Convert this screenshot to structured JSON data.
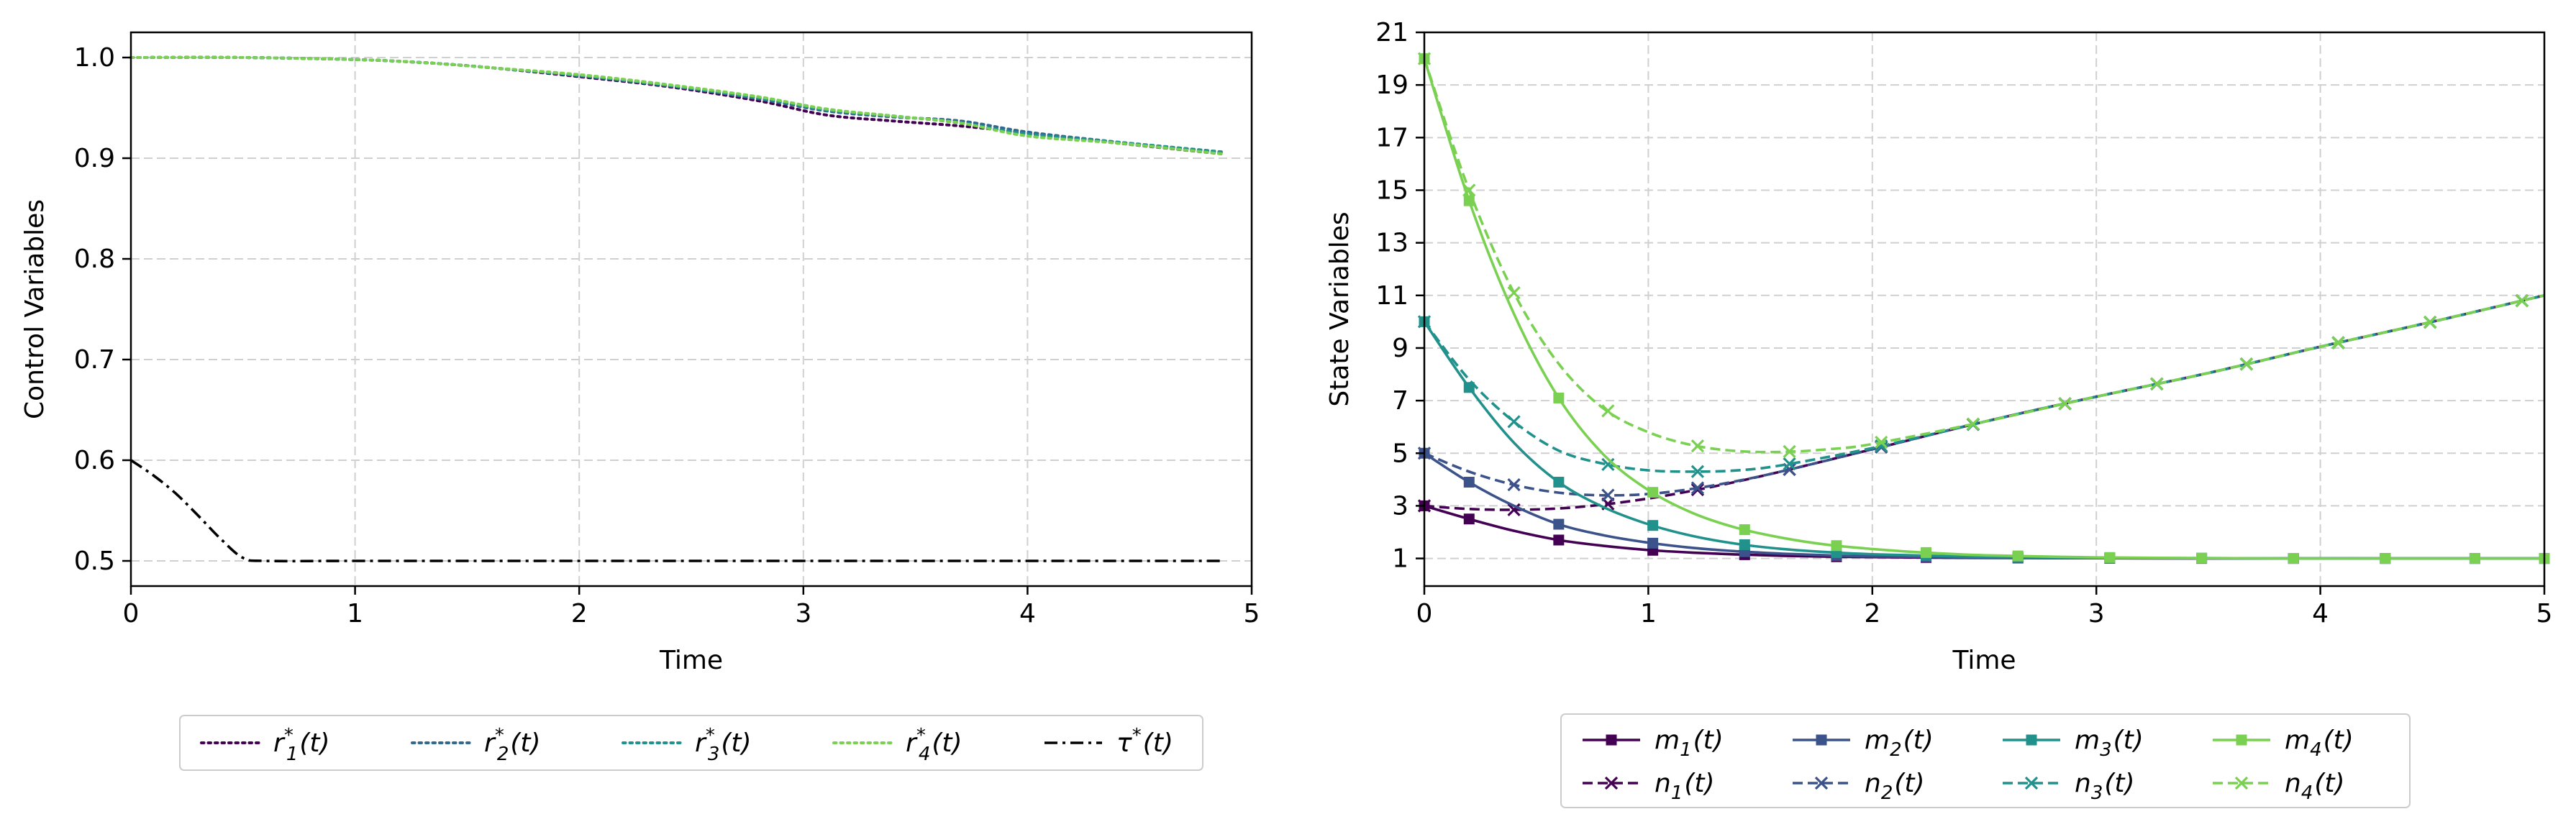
{
  "chart_data": [
    {
      "type": "line",
      "title": "",
      "xlabel": "Time",
      "ylabel": "Control Variables",
      "xlim": [
        0,
        5
      ],
      "ylim": [
        0.475,
        1.025
      ],
      "xticks": [
        0,
        1,
        2,
        3,
        4,
        5
      ],
      "xtick_labels": [
        "0",
        "1",
        "2",
        "3",
        "4",
        "5"
      ],
      "yticks": [
        0.5,
        0.6,
        0.7,
        0.8,
        0.9,
        1.0
      ],
      "ytick_labels": [
        "0.5",
        "0.6",
        "0.7",
        "0.8",
        "0.9",
        "1.0"
      ],
      "grid": true,
      "legend_placement": "bottom-center",
      "series": [
        {
          "name": "r1*(t)",
          "label_base": "r",
          "label_sub": "1",
          "label_sup": "*",
          "label_tail": "(t)",
          "color": "#440154",
          "style": "dotted",
          "x": [
            0,
            0.5,
            1,
            1.3,
            1.6,
            2,
            2.4,
            2.8,
            3.1,
            3.4,
            3.7,
            4,
            4.4,
            4.88
          ],
          "y": [
            1.0,
            1.0,
            0.998,
            0.995,
            0.99,
            0.981,
            0.971,
            0.957,
            0.943,
            0.937,
            0.932,
            0.925,
            0.915,
            0.904
          ]
        },
        {
          "name": "r2*(t)",
          "label_base": "r",
          "label_sub": "2",
          "label_sup": "*",
          "label_tail": "(t)",
          "color": "#31688e",
          "style": "dotted",
          "x": [
            0,
            0.5,
            1,
            1.3,
            1.6,
            2,
            2.4,
            2.8,
            3.1,
            3.4,
            3.7,
            4,
            4.4,
            4.88
          ],
          "y": [
            1.0,
            1.0,
            0.998,
            0.995,
            0.99,
            0.982,
            0.972,
            0.959,
            0.947,
            0.941,
            0.937,
            0.926,
            0.916,
            0.905
          ]
        },
        {
          "name": "r3*(t)",
          "label_base": "r",
          "label_sub": "3",
          "label_sup": "*",
          "label_tail": "(t)",
          "color": "#21918c",
          "style": "dotted",
          "x": [
            0,
            0.5,
            1,
            1.3,
            1.6,
            2,
            2.4,
            2.8,
            3.1,
            3.4,
            3.7,
            4,
            4.4,
            4.88
          ],
          "y": [
            1.0,
            1.0,
            0.998,
            0.995,
            0.99,
            0.982,
            0.972,
            0.96,
            0.948,
            0.942,
            0.935,
            0.924,
            0.916,
            0.906
          ]
        },
        {
          "name": "r4*(t)",
          "label_base": "r",
          "label_sub": "4",
          "label_sup": "*",
          "label_tail": "(t)",
          "color": "#7ad151",
          "style": "dotted",
          "x": [
            0,
            0.5,
            1,
            1.3,
            1.6,
            2,
            2.4,
            2.8,
            3.1,
            3.4,
            3.7,
            4,
            4.4,
            4.88
          ],
          "y": [
            1.0,
            1.0,
            0.998,
            0.995,
            0.99,
            0.983,
            0.973,
            0.961,
            0.949,
            0.942,
            0.935,
            0.922,
            0.915,
            0.904
          ]
        },
        {
          "name": "τ*(t)",
          "label_base": "τ",
          "label_sub": "",
          "label_sup": "*",
          "label_tail": "(t)",
          "color": "#000000",
          "style": "dashdot",
          "x": [
            0,
            0.1,
            0.2,
            0.3,
            0.4,
            0.5,
            0.6,
            1,
            2,
            3,
            4,
            4.88
          ],
          "y": [
            0.6,
            0.585,
            0.567,
            0.545,
            0.522,
            0.503,
            0.5,
            0.5,
            0.5,
            0.5,
            0.5,
            0.5
          ]
        }
      ]
    },
    {
      "type": "line",
      "title": "",
      "xlabel": "Time",
      "ylabel": "State Variables",
      "xlim": [
        0,
        5
      ],
      "ylim": [
        -0.05,
        21
      ],
      "xticks": [
        0,
        1,
        2,
        3,
        4,
        5
      ],
      "xtick_labels": [
        "0",
        "1",
        "2",
        "3",
        "4",
        "5"
      ],
      "yticks": [
        1,
        3,
        5,
        7,
        9,
        11,
        13,
        15,
        17,
        19,
        21
      ],
      "ytick_labels": [
        "1",
        "3",
        "5",
        "7",
        "9",
        "11",
        "13",
        "15",
        "17",
        "19",
        "21"
      ],
      "grid": true,
      "legend_placement": "bottom-center",
      "series": [
        {
          "name": "m1(t)",
          "label_base": "m",
          "label_sub": "1",
          "label_tail": "(t)",
          "color": "#440154",
          "style": "solid",
          "marker": "square",
          "x": [
            0,
            0.2,
            0.4,
            0.6,
            0.8,
            1.0,
            1.2,
            1.4,
            1.6,
            1.8,
            2.0,
            2.5,
            3.0,
            3.5,
            4.0,
            4.5,
            5.0
          ],
          "y": [
            3.0,
            2.5,
            2.05,
            1.7,
            1.48,
            1.32,
            1.22,
            1.15,
            1.1,
            1.07,
            1.05,
            1.02,
            1.01,
            1.0,
            1.0,
            1.0,
            1.0
          ],
          "mx": [
            0,
            0.2,
            0.6,
            1.02,
            1.43,
            1.84,
            2.24,
            2.65,
            3.06,
            3.47,
            3.88,
            4.29,
            4.69,
            5.0
          ]
        },
        {
          "name": "n1(t)",
          "label_base": "n",
          "label_sub": "1",
          "label_tail": "(t)",
          "color": "#440154",
          "style": "dashed",
          "marker": "x",
          "x": [
            0,
            0.2,
            0.4,
            0.6,
            0.8,
            1.0,
            1.2,
            1.4,
            1.6,
            2.0,
            2.5,
            3.0,
            3.5,
            4.0,
            4.5,
            5.0
          ],
          "y": [
            3.0,
            2.88,
            2.85,
            2.9,
            3.05,
            3.28,
            3.58,
            3.93,
            4.32,
            5.15,
            6.2,
            7.15,
            8.05,
            9.05,
            10.0,
            11.0
          ],
          "mx": [
            0,
            0.4,
            0.82,
            1.22,
            1.63,
            2.04,
            2.45,
            2.86,
            3.27,
            3.67,
            4.08,
            4.49,
            4.9
          ]
        },
        {
          "name": "m2(t)",
          "label_base": "m",
          "label_sub": "2",
          "label_tail": "(t)",
          "color": "#3b528b",
          "style": "solid",
          "marker": "square",
          "x": [
            0,
            0.2,
            0.4,
            0.6,
            0.8,
            1.0,
            1.2,
            1.4,
            1.6,
            1.8,
            2.0,
            2.5,
            3.0,
            3.5,
            4.0,
            4.5,
            5.0
          ],
          "y": [
            5.0,
            3.9,
            3.0,
            2.3,
            1.88,
            1.6,
            1.4,
            1.27,
            1.18,
            1.12,
            1.08,
            1.03,
            1.01,
            1.0,
            1.0,
            1.0,
            1.0
          ],
          "mx": [
            0,
            0.2,
            0.6,
            1.02,
            1.43,
            1.84,
            2.24,
            2.65,
            3.06,
            3.47,
            3.88,
            4.29,
            4.69,
            5.0
          ]
        },
        {
          "name": "n2(t)",
          "label_base": "n",
          "label_sub": "2",
          "label_tail": "(t)",
          "color": "#3b528b",
          "style": "dashed",
          "marker": "x",
          "x": [
            0,
            0.2,
            0.4,
            0.6,
            0.8,
            1.0,
            1.2,
            1.4,
            1.6,
            2.0,
            2.5,
            3.0,
            3.5,
            4.0,
            4.5,
            5.0
          ],
          "y": [
            5.0,
            4.3,
            3.8,
            3.5,
            3.4,
            3.45,
            3.65,
            3.95,
            4.32,
            5.15,
            6.2,
            7.15,
            8.05,
            9.05,
            10.0,
            11.0
          ],
          "mx": [
            0,
            0.4,
            0.82,
            1.22,
            1.63,
            2.04,
            2.45,
            2.86,
            3.27,
            3.67,
            4.08,
            4.49,
            4.9
          ]
        },
        {
          "name": "m3(t)",
          "label_base": "m",
          "label_sub": "3",
          "label_tail": "(t)",
          "color": "#21918c",
          "style": "solid",
          "marker": "square",
          "x": [
            0,
            0.2,
            0.4,
            0.6,
            0.8,
            1.0,
            1.2,
            1.4,
            1.6,
            1.8,
            2.0,
            2.5,
            3.0,
            3.5,
            4.0,
            4.5,
            5.0
          ],
          "y": [
            10.0,
            7.5,
            5.4,
            3.9,
            2.95,
            2.3,
            1.85,
            1.55,
            1.36,
            1.24,
            1.16,
            1.06,
            1.02,
            1.01,
            1.0,
            1.0,
            1.0
          ],
          "mx": [
            0,
            0.2,
            0.6,
            1.02,
            1.43,
            1.84,
            2.24,
            2.65,
            3.06,
            3.47,
            3.88,
            4.29,
            4.69,
            5.0
          ]
        },
        {
          "name": "n3(t)",
          "label_base": "n",
          "label_sub": "3",
          "label_tail": "(t)",
          "color": "#21918c",
          "style": "dashed",
          "marker": "x",
          "x": [
            0,
            0.2,
            0.4,
            0.6,
            0.8,
            1.0,
            1.2,
            1.4,
            1.6,
            2.0,
            2.5,
            3.0,
            3.5,
            4.0,
            4.5,
            5.0
          ],
          "y": [
            10.0,
            7.8,
            6.2,
            5.1,
            4.6,
            4.35,
            4.3,
            4.35,
            4.55,
            5.2,
            6.2,
            7.15,
            8.05,
            9.05,
            10.0,
            11.0
          ],
          "mx": [
            0,
            0.4,
            0.82,
            1.22,
            1.63,
            2.04,
            2.45,
            2.86,
            3.27,
            3.67,
            4.08,
            4.49,
            4.9
          ]
        },
        {
          "name": "m4(t)",
          "label_base": "m",
          "label_sub": "4",
          "label_tail": "(t)",
          "color": "#7ad151",
          "style": "solid",
          "marker": "square",
          "x": [
            0,
            0.2,
            0.4,
            0.6,
            0.8,
            1.0,
            1.2,
            1.4,
            1.6,
            1.8,
            2.0,
            2.2,
            2.5,
            3.0,
            3.5,
            4.0,
            4.5,
            5.0
          ],
          "y": [
            20.0,
            14.6,
            10.3,
            7.1,
            4.95,
            3.6,
            2.72,
            2.15,
            1.78,
            1.52,
            1.36,
            1.24,
            1.12,
            1.04,
            1.01,
            1.0,
            1.0,
            1.0
          ],
          "mx": [
            0,
            0.2,
            0.6,
            1.02,
            1.43,
            1.84,
            2.24,
            2.65,
            3.06,
            3.47,
            3.88,
            4.29,
            4.69,
            5.0
          ]
        },
        {
          "name": "n4(t)",
          "label_base": "n",
          "label_sub": "4",
          "label_tail": "(t)",
          "color": "#7ad151",
          "style": "dashed",
          "marker": "x",
          "x": [
            0,
            0.2,
            0.4,
            0.6,
            0.8,
            1.0,
            1.2,
            1.4,
            1.6,
            1.8,
            2.0,
            2.5,
            3.0,
            3.5,
            4.0,
            4.5,
            5.0
          ],
          "y": [
            20.0,
            15.0,
            11.1,
            8.4,
            6.7,
            5.8,
            5.3,
            5.08,
            5.05,
            5.15,
            5.35,
            6.2,
            7.15,
            8.05,
            9.05,
            10.0,
            11.0
          ],
          "mx": [
            0,
            0.2,
            0.4,
            0.82,
            1.22,
            1.63,
            2.04,
            2.45,
            2.86,
            3.27,
            3.67,
            4.08,
            4.49,
            4.9
          ]
        }
      ]
    }
  ]
}
